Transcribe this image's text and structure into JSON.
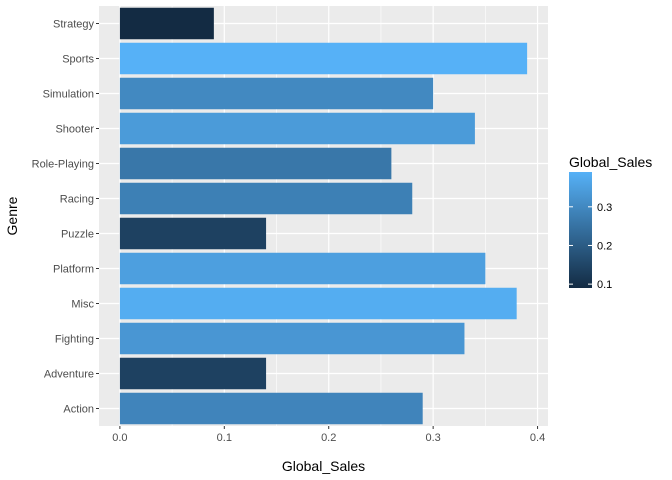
{
  "chart_data": {
    "type": "bar",
    "orientation": "horizontal",
    "categories": [
      "Action",
      "Adventure",
      "Fighting",
      "Misc",
      "Platform",
      "Puzzle",
      "Racing",
      "Role-Playing",
      "Shooter",
      "Simulation",
      "Sports",
      "Strategy"
    ],
    "values": [
      0.29,
      0.14,
      0.33,
      0.38,
      0.35,
      0.14,
      0.28,
      0.26,
      0.34,
      0.3,
      0.39,
      0.09
    ],
    "xlabel": "Global_Sales",
    "ylabel": "Genre",
    "xlim": [
      -0.02,
      0.41
    ],
    "xticks": [
      0.0,
      0.1,
      0.2,
      0.3,
      0.4
    ],
    "xtick_labels": [
      "0.0",
      "0.1",
      "0.2",
      "0.3",
      "0.4"
    ],
    "grid": true,
    "legend": {
      "title": "Global_Sales",
      "placement": "right",
      "type": "colorbar",
      "range": [
        0.09,
        0.39
      ],
      "ticks": [
        0.1,
        0.2,
        0.3
      ],
      "tick_labels": [
        "0.1",
        "0.2",
        "0.3"
      ],
      "low_color": "#132B43",
      "high_color": "#56B1F7"
    },
    "colors": {
      "panel_background": "#EBEBEB",
      "grid_major": "#FFFFFF"
    }
  }
}
